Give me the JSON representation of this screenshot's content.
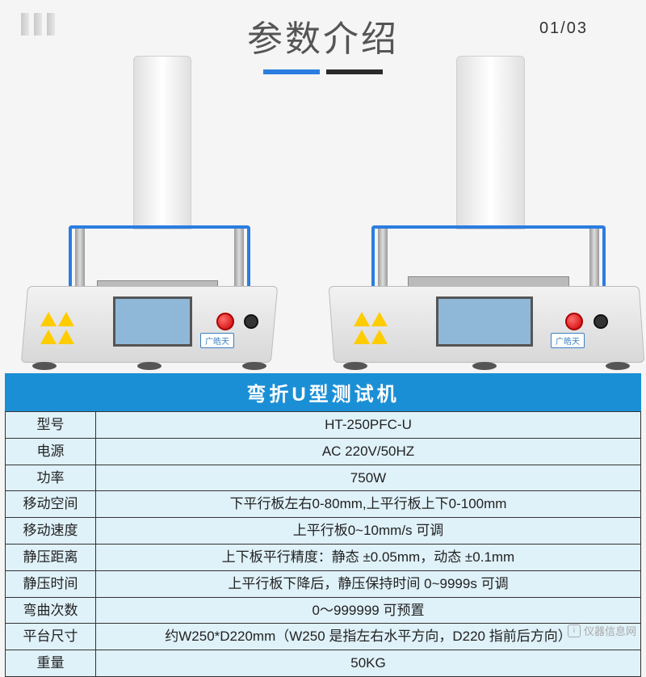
{
  "header": {
    "page_counter": "01/03",
    "title": "参数介绍",
    "bar_colors": {
      "left": "#2b7de0",
      "right": "#2a2a2a"
    }
  },
  "brand_label": "广皓天",
  "table": {
    "title": "弯折U型测试机",
    "rows": [
      {
        "label": "型号",
        "value": "HT-250PFC-U"
      },
      {
        "label": "电源",
        "value": "AC 220V/50HZ"
      },
      {
        "label": "功率",
        "value": "750W"
      },
      {
        "label": "移动空间",
        "value": "下平行板左右0-80mm,上平行板上下0-100mm"
      },
      {
        "label": "移动速度",
        "value": "上平行板0~10mm/s 可调"
      },
      {
        "label": "静压距离",
        "value": "上下板平行精度：静态 ±0.05mm，动态 ±0.1mm"
      },
      {
        "label": "静压时间",
        "value": "上平行板下降后，静压保持时间 0~9999s 可调"
      },
      {
        "label": "弯曲次数",
        "value": "0～999999 可预置"
      },
      {
        "label": "平台尺寸",
        "value": "约W250*D220mm（W250 是指左右水平方向，D220 指前后方向）"
      },
      {
        "label": "重量",
        "value": "50KG"
      }
    ]
  },
  "watermark": "仪器信息网",
  "colors": {
    "title_band": "#1b8fd6",
    "table_bg": "#dff1f9",
    "accent_blue": "#2b7de0"
  }
}
